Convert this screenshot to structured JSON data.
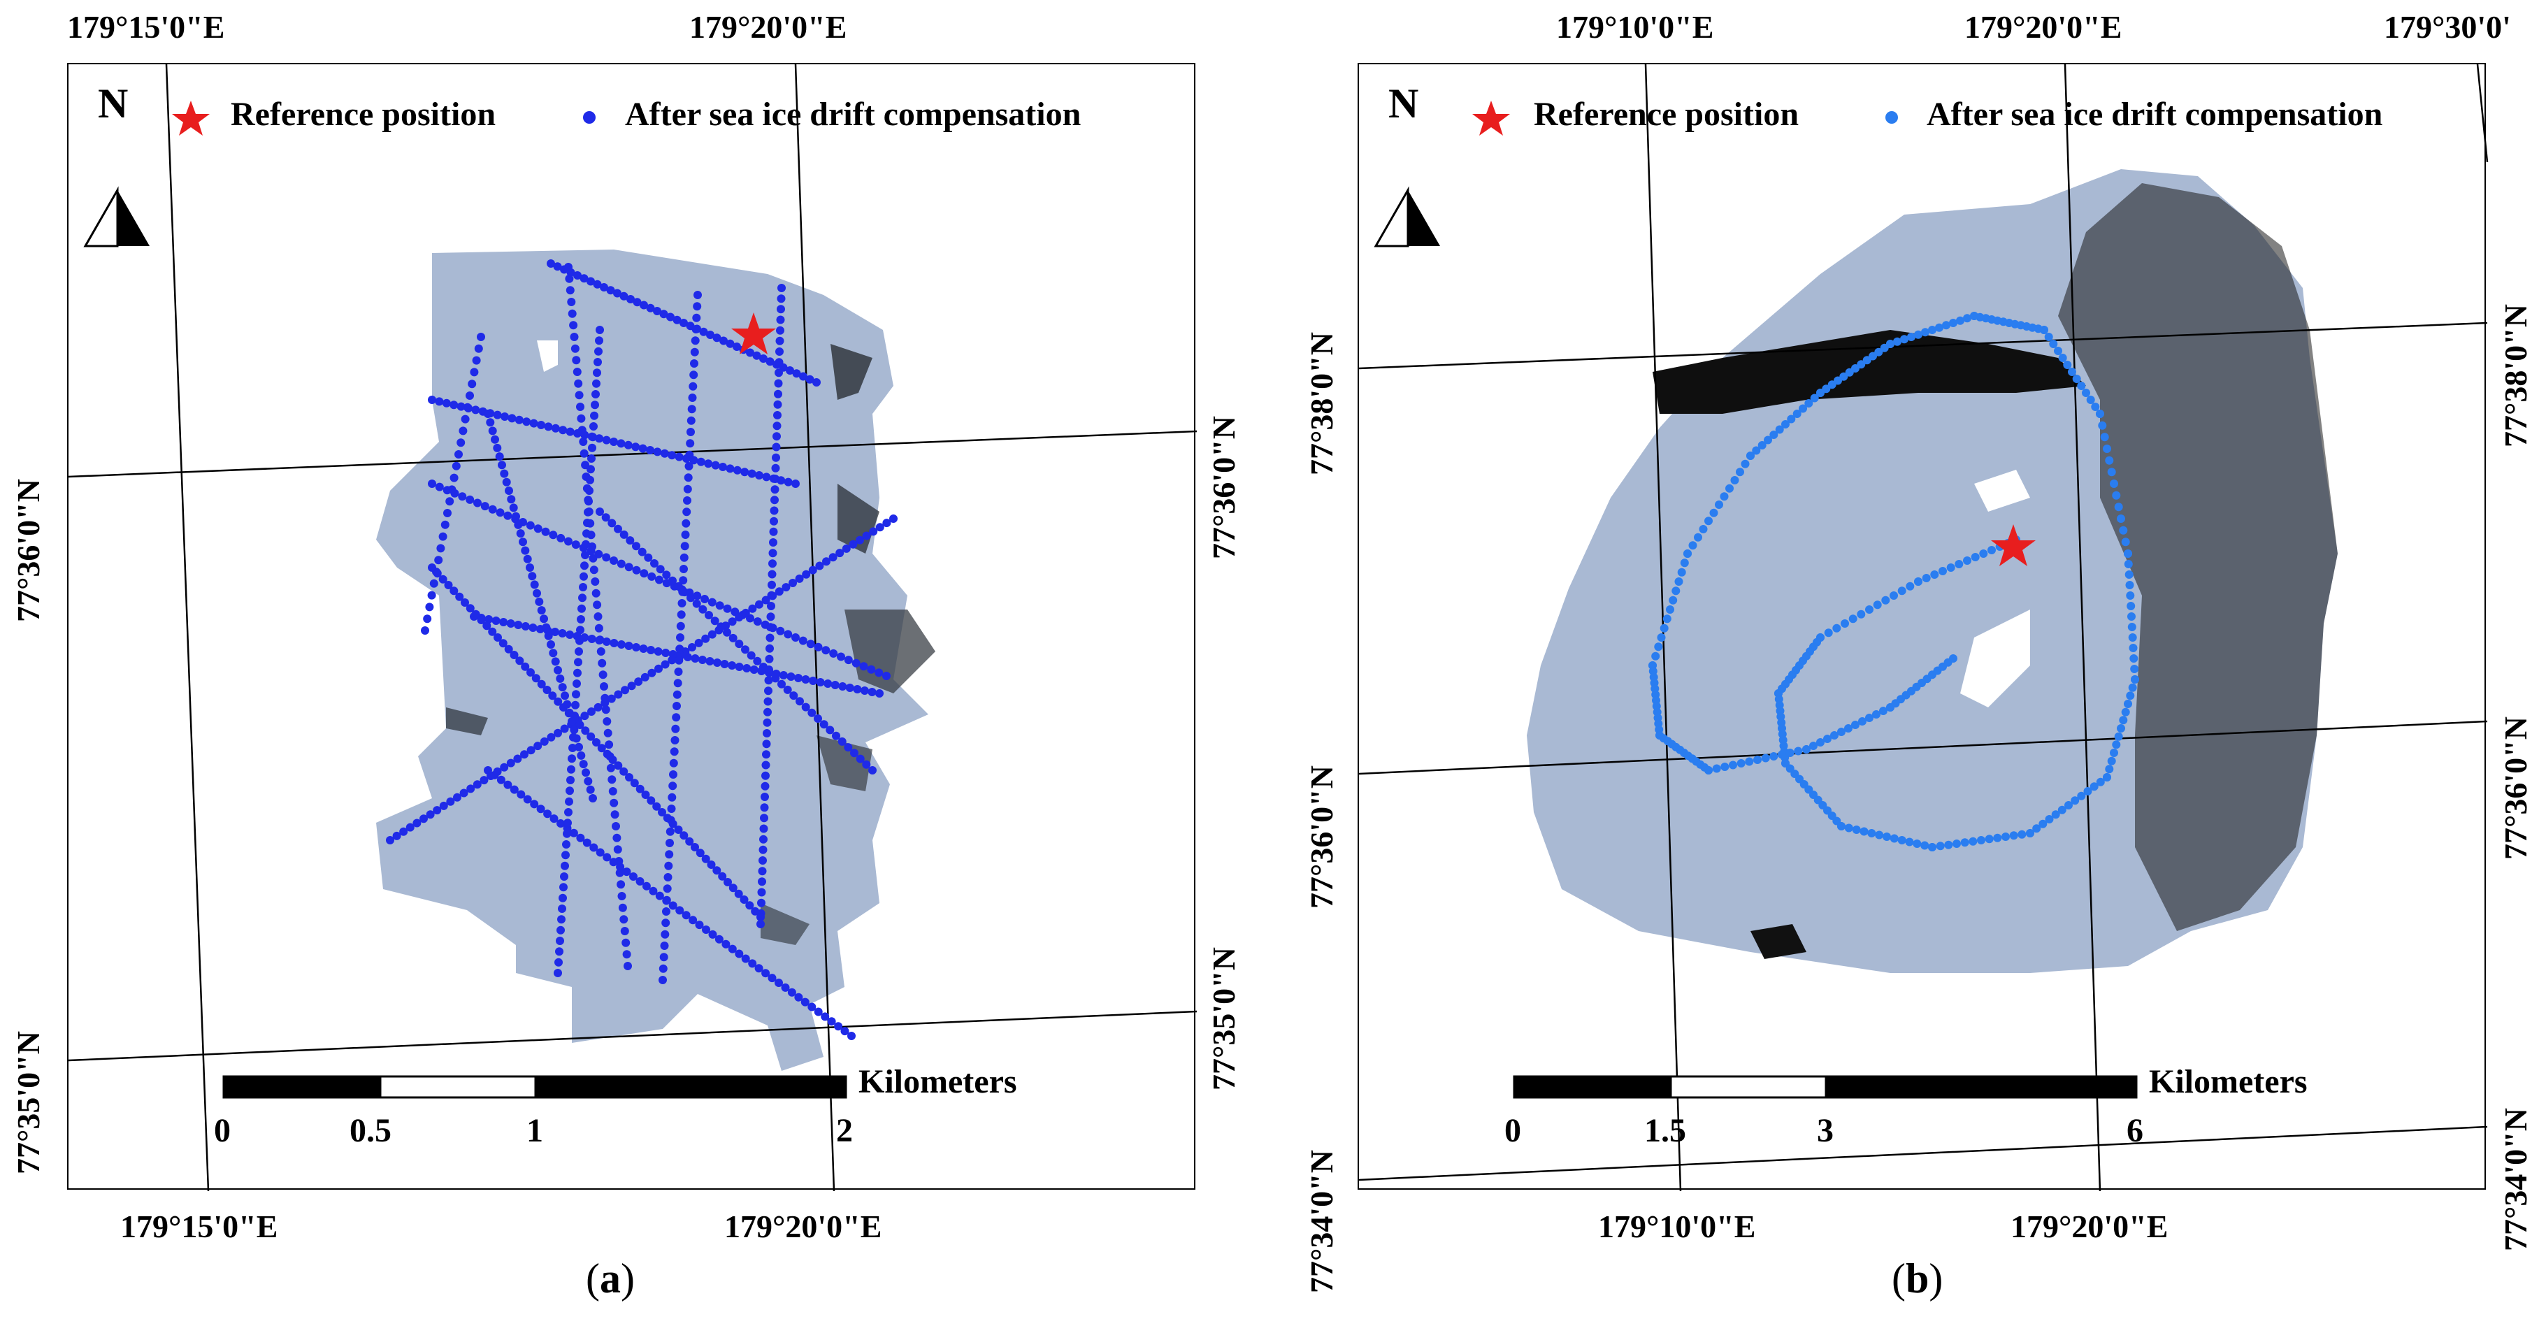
{
  "panels": [
    {
      "id": "a",
      "caption": "a",
      "legend": {
        "north_label": "N",
        "reference_label": "Reference position",
        "drift_label": "After sea ice drift compensation",
        "reference_color": "#e81e1e",
        "drift_color": "#1f2ae8"
      },
      "top_labels": [
        "179°15'0\"E",
        "179°20'0\"E"
      ],
      "bottom_labels": [
        "179°15'0\"E",
        "179°20'0\"E"
      ],
      "left_labels": [
        "77°36'0\"N",
        "77°35'0\"N"
      ],
      "right_labels": [
        "77°36'0\"N",
        "77°35'0\"N"
      ],
      "scale": {
        "unit": "Kilometers",
        "ticks": [
          "0",
          "0.5",
          "1",
          "2"
        ]
      }
    },
    {
      "id": "b",
      "caption": "b",
      "legend": {
        "north_label": "N",
        "reference_label": "Reference position",
        "drift_label": "After sea ice drift compensation",
        "reference_color": "#e81e1e",
        "drift_color": "#2a7df0"
      },
      "top_labels": [
        "179°10'0\"E",
        "179°20'0\"E",
        "179°30'0'"
      ],
      "bottom_labels": [
        "179°10'0\"E",
        "179°20'0\"E"
      ],
      "left_labels": [
        "77°38'0\"N",
        "77°36'0\"N",
        "77°34'0\"N"
      ],
      "right_labels": [
        "77°38'0\"N",
        "77°36'0\"N",
        "77°34'0\"N"
      ],
      "scale": {
        "unit": "Kilometers",
        "ticks": [
          "0",
          "1.5",
          "3",
          "6"
        ]
      }
    }
  ],
  "colors": {
    "ice": "#a9b9d3",
    "water": "#111111",
    "frame": "#000000"
  }
}
